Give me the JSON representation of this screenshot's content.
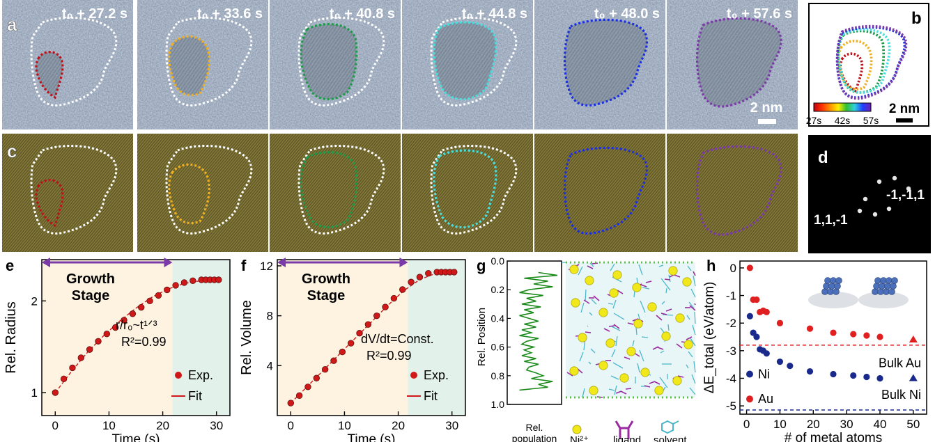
{
  "panels": {
    "a_letter": "a",
    "b_letter": "b",
    "c_letter": "c",
    "d_letter": "d",
    "e_letter": "e",
    "f_letter": "f",
    "g_letter": "g",
    "h_letter": "h"
  },
  "tem_frames": [
    {
      "time": "t₀ + 27.2 s",
      "color": "#c0111a"
    },
    {
      "time": "t₀ + 33.6 s",
      "color": "#f0b020"
    },
    {
      "time": "t₀ + 40.8 s",
      "color": "#1f9a4a"
    },
    {
      "time": "t₀ + 44.8 s",
      "color": "#49dede"
    },
    {
      "time": "t₀ + 48.0 s",
      "color": "#1c2fe0"
    },
    {
      "time": "t₀ + 57.6 s",
      "color": "#7b3aa8"
    }
  ],
  "scalebar_a": "2 nm",
  "scalebar_b": "2 nm",
  "colorbar_labels": [
    "27s",
    "42s",
    "57s"
  ],
  "fft_labels": [
    "-1,-1,1",
    "1,1,-1"
  ],
  "chart_data": [
    {
      "panel": "e",
      "type": "scatter",
      "xlabel": "Time (s)",
      "ylabel": "Rel. Radius",
      "xlim": [
        -2.5,
        32.5
      ],
      "ylim": [
        0.75,
        2.45
      ],
      "xticks": [
        0,
        10,
        20,
        30
      ],
      "yticks": [
        1,
        2
      ],
      "stage_label": [
        "Growth",
        "Stage"
      ],
      "stage_end": 21.8,
      "annotation_lines": [
        "r/r₀~t¹ᐟ³",
        "R²=0.99"
      ],
      "legend": [
        "Exp.",
        "Fit"
      ],
      "series": [
        {
          "name": "Exp.",
          "x": [
            0,
            1.6,
            3.2,
            4.8,
            6.4,
            8.0,
            9.6,
            11.2,
            12.8,
            14.4,
            16.0,
            17.6,
            19.2,
            20.8,
            22.4,
            24.0,
            25.6,
            27.2,
            28.0,
            28.8,
            29.6,
            30.4
          ],
          "y": [
            1.0,
            1.15,
            1.27,
            1.38,
            1.47,
            1.56,
            1.64,
            1.71,
            1.79,
            1.86,
            1.93,
            2.0,
            2.06,
            2.12,
            2.17,
            2.2,
            2.22,
            2.23,
            2.23,
            2.23,
            2.23,
            2.23
          ]
        },
        {
          "name": "Fit",
          "x": [
            0,
            3,
            6,
            9,
            12,
            15,
            18,
            21,
            24,
            27,
            30
          ],
          "y": [
            1.0,
            1.23,
            1.44,
            1.62,
            1.78,
            1.92,
            2.04,
            2.13,
            2.19,
            2.22,
            2.23
          ]
        }
      ]
    },
    {
      "panel": "f",
      "type": "scatter",
      "xlabel": "Time (s)",
      "ylabel": "Rel. Volume",
      "xlim": [
        -2.5,
        32.5
      ],
      "ylim": [
        0,
        12.5
      ],
      "xticks": [
        0,
        10,
        20,
        30
      ],
      "yticks": [
        4,
        8,
        12
      ],
      "stage_label": [
        "Growth",
        "Stage"
      ],
      "stage_end": 21.8,
      "annotation_lines": [
        "dV/dt=Const.",
        "R²=0.99"
      ],
      "legend": [
        "Exp.",
        "Fit"
      ],
      "series": [
        {
          "name": "Exp.",
          "x": [
            0,
            1.6,
            3.2,
            4.8,
            6.4,
            8.0,
            9.6,
            11.2,
            12.8,
            14.4,
            16.0,
            17.6,
            19.2,
            20.8,
            22.4,
            24.0,
            25.6,
            27.2,
            28.0,
            28.8,
            29.6,
            30.4
          ],
          "y": [
            1.0,
            1.6,
            2.3,
            3.0,
            3.7,
            4.4,
            5.1,
            5.8,
            6.6,
            7.3,
            8.0,
            8.7,
            9.4,
            10.1,
            10.7,
            11.1,
            11.4,
            11.5,
            11.5,
            11.5,
            11.5,
            11.5
          ]
        },
        {
          "name": "Fit",
          "x": [
            0,
            3,
            6,
            9,
            12,
            15,
            18,
            21,
            24,
            27,
            30
          ],
          "y": [
            1.0,
            2.3,
            3.6,
            4.9,
            6.2,
            7.5,
            8.8,
            10.0,
            10.9,
            11.4,
            11.5
          ]
        }
      ]
    },
    {
      "panel": "g",
      "type": "line",
      "ylabel": "Rel. Position",
      "xlabel": [
        "Rel.",
        "population"
      ],
      "ylim": [
        0.0,
        1.0
      ],
      "yticks": [
        0.0,
        0.2,
        0.4,
        0.6,
        0.8,
        1.0
      ],
      "legend": [
        "Ni²⁺",
        "ligand",
        "solvent"
      ],
      "series": [
        {
          "name": "population",
          "y": [
            0.08,
            0.1,
            0.12,
            0.14,
            0.16,
            0.18,
            0.2,
            0.22,
            0.24,
            0.26,
            0.28,
            0.3,
            0.32,
            0.34,
            0.36,
            0.38,
            0.4,
            0.42,
            0.44,
            0.46,
            0.48,
            0.5,
            0.52,
            0.54,
            0.56,
            0.58,
            0.6,
            0.62,
            0.64,
            0.66,
            0.68,
            0.7,
            0.72,
            0.74,
            0.76,
            0.78,
            0.8,
            0.82,
            0.84,
            0.86,
            0.88,
            0.9
          ],
          "x": [
            0.6,
            1.0,
            0.3,
            0.8,
            0.5,
            0.9,
            0.4,
            0.2,
            0.7,
            0.35,
            0.55,
            0.25,
            0.65,
            0.3,
            0.5,
            0.2,
            0.4,
            0.6,
            0.3,
            0.55,
            0.25,
            0.45,
            0.2,
            0.6,
            0.35,
            0.25,
            0.5,
            0.3,
            0.45,
            0.25,
            0.55,
            0.3,
            0.6,
            0.4,
            0.35,
            0.55,
            0.7,
            0.45,
            0.9,
            0.6,
            0.8,
            0.2
          ]
        }
      ]
    },
    {
      "panel": "h",
      "type": "scatter",
      "xlabel": "# of metal atoms",
      "ylabel": "ΔE_total (eV/atom)",
      "xlim": [
        -2,
        54
      ],
      "ylim": [
        -5.3,
        0.25
      ],
      "xticks": [
        0,
        10,
        20,
        30,
        40,
        50
      ],
      "yticks": [
        0,
        -1,
        -2,
        -3,
        -4,
        -5
      ],
      "legend": [
        "Ni",
        "Au"
      ],
      "bulk_labels": [
        "Bulk Au",
        "Bulk Ni"
      ],
      "bulk_au": -2.8,
      "bulk_ni": -5.15,
      "series": [
        {
          "name": "Au",
          "color": "#e02020",
          "x": [
            1,
            2,
            3,
            4,
            5,
            6,
            10,
            19,
            26,
            32,
            36,
            40
          ],
          "y": [
            0.0,
            -1.15,
            -1.15,
            -1.6,
            -1.55,
            -1.6,
            -2.0,
            -2.2,
            -2.35,
            -2.4,
            -2.45,
            -2.5
          ],
          "bulk_marker": {
            "x": 50,
            "y": -2.6
          }
        },
        {
          "name": "Ni",
          "color": "#1a2a8c",
          "x": [
            1,
            2,
            3,
            4,
            5,
            6,
            10,
            13,
            19,
            26,
            32,
            36,
            40
          ],
          "y": [
            -1.75,
            -2.35,
            -2.5,
            -2.95,
            -3.0,
            -3.1,
            -3.4,
            -3.55,
            -3.75,
            -3.85,
            -3.9,
            -3.95,
            -4.0
          ],
          "bulk_marker": {
            "x": 50,
            "y": -4.0
          }
        }
      ]
    }
  ]
}
